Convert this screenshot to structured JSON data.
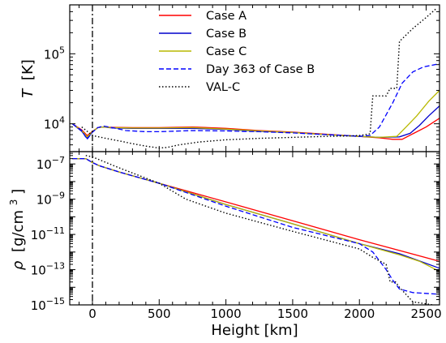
{
  "chart_data": [
    {
      "type": "line",
      "panel": "top",
      "ylabel_var": "T",
      "ylabel_unit": "[K]",
      "yscale": "log",
      "ylim": [
        4000,
        500000
      ],
      "xlim": [
        -170,
        2600
      ],
      "y_ticks": [
        {
          "value": 10000,
          "base": "10",
          "exp": "4"
        },
        {
          "value": 100000,
          "base": "10",
          "exp": "5"
        }
      ],
      "grid": false,
      "vertical_line_x": 0,
      "legend_position": "top-center",
      "series": [
        {
          "name": "Case A",
          "color": "#ff0000",
          "style": "solid",
          "x": [
            -150,
            -80,
            -40,
            0,
            40,
            80,
            150,
            300,
            500,
            750,
            1000,
            1250,
            1500,
            1750,
            2000,
            2150,
            2250,
            2320,
            2400,
            2500,
            2600
          ],
          "y": [
            10000,
            8200,
            6800,
            7800,
            8800,
            9000,
            8900,
            8800,
            8800,
            9000,
            8600,
            8000,
            7600,
            7100,
            6600,
            6300,
            6000,
            6000,
            7200,
            9000,
            12000
          ]
        },
        {
          "name": "Case B",
          "color": "#0000cc",
          "style": "solid",
          "x": [
            -150,
            -80,
            -40,
            0,
            40,
            80,
            150,
            300,
            500,
            750,
            1000,
            1250,
            1500,
            1750,
            2000,
            2150,
            2300,
            2380,
            2450,
            2520,
            2600
          ],
          "y": [
            10000,
            7800,
            6200,
            7600,
            8800,
            9000,
            8700,
            8600,
            8600,
            8600,
            8300,
            7800,
            7500,
            7000,
            6600,
            6400,
            6500,
            7300,
            9500,
            13000,
            18000
          ]
        },
        {
          "name": "Case C",
          "color": "#b8b800",
          "style": "solid",
          "x": [
            -150,
            -80,
            -40,
            0,
            40,
            80,
            150,
            300,
            500,
            750,
            1000,
            1250,
            1500,
            1750,
            2000,
            2150,
            2280,
            2350,
            2430,
            2520,
            2600
          ],
          "y": [
            10000,
            8000,
            6500,
            7700,
            8800,
            9000,
            8800,
            8700,
            8700,
            8800,
            8400,
            7900,
            7500,
            7000,
            6600,
            6400,
            6600,
            9000,
            13000,
            21000,
            30000
          ]
        },
        {
          "name": "Day 363 of Case B",
          "color": "#0000ff",
          "style": "dashed",
          "x": [
            -150,
            -80,
            -40,
            0,
            40,
            80,
            150,
            250,
            400,
            500,
            750,
            1000,
            1250,
            1500,
            1750,
            1900,
            2000,
            2080,
            2150,
            2250,
            2320,
            2400,
            2480,
            2600
          ],
          "y": [
            10000,
            8000,
            6000,
            7600,
            8800,
            9300,
            8800,
            8000,
            7700,
            7700,
            8000,
            7900,
            7700,
            7400,
            7000,
            6800,
            6600,
            6800,
            9000,
            20000,
            38000,
            55000,
            65000,
            72000
          ]
        },
        {
          "name": "VAL-C",
          "color": "#000000",
          "style": "dotted",
          "x": [
            -80,
            0,
            100,
            200,
            300,
            400,
            500,
            560,
            650,
            800,
            1000,
            1250,
            1500,
            1750,
            1900,
            2000,
            2080,
            2100,
            2200,
            2230,
            2280,
            2300,
            2400,
            2500,
            2580
          ],
          "y": [
            9000,
            6800,
            6200,
            5700,
            5200,
            4800,
            4500,
            4600,
            5000,
            5500,
            5900,
            6200,
            6400,
            6600,
            6700,
            6800,
            7200,
            25000,
            25000,
            32000,
            32000,
            150000,
            230000,
            330000,
            450000
          ]
        }
      ]
    },
    {
      "type": "line",
      "panel": "bottom",
      "ylabel_var": "ρ",
      "ylabel_unit_pre": "[g/cm",
      "ylabel_unit_sup": "3",
      "ylabel_unit_post": "]",
      "xlabel": "Height [km]",
      "yscale": "log",
      "ylim": [
        1e-15,
        5e-07
      ],
      "xlim": [
        -170,
        2600
      ],
      "x_ticks": [
        0,
        500,
        1000,
        1500,
        2000,
        2500
      ],
      "y_ticks": [
        {
          "value": 1e-07,
          "base": "10",
          "exp": "−7"
        },
        {
          "value": 1e-09,
          "base": "10",
          "exp": "−9"
        },
        {
          "value": 1e-11,
          "base": "10",
          "exp": "−11"
        },
        {
          "value": 1e-13,
          "base": "10",
          "exp": "−13"
        },
        {
          "value": 1e-15,
          "base": "10",
          "exp": "−15"
        }
      ],
      "grid": false,
      "vertical_line_x": 0,
      "series": [
        {
          "name": "Case A",
          "color": "#ff0000",
          "style": "solid",
          "x": [
            -150,
            -50,
            0,
            50,
            200,
            500,
            1000,
            1500,
            2000,
            2600
          ],
          "y": [
            2e-07,
            2e-07,
            1.2e-07,
            8e-08,
            3.5e-08,
            8e-09,
            7e-10,
            6e-11,
            5e-12,
            3e-13
          ]
        },
        {
          "name": "Case B",
          "color": "#0000cc",
          "style": "solid",
          "x": [
            -150,
            -50,
            0,
            50,
            200,
            500,
            1000,
            1500,
            2000,
            2300,
            2600
          ],
          "y": [
            2e-07,
            2e-07,
            1.2e-07,
            8e-08,
            3.5e-08,
            8e-09,
            5e-10,
            4e-11,
            3e-12,
            8e-13,
            1.2e-13
          ]
        },
        {
          "name": "Case C",
          "color": "#b8b800",
          "style": "solid",
          "x": [
            -150,
            -50,
            0,
            50,
            200,
            500,
            1000,
            1500,
            2000,
            2300,
            2450,
            2600
          ],
          "y": [
            2e-07,
            2e-07,
            1.2e-07,
            8e-08,
            3.5e-08,
            8e-09,
            5e-10,
            4e-11,
            3e-12,
            7e-13,
            3e-13,
            8e-14
          ]
        },
        {
          "name": "Day 363 of Case B",
          "color": "#0000ff",
          "style": "dashed",
          "x": [
            -150,
            -50,
            0,
            50,
            200,
            500,
            1000,
            1500,
            1800,
            2000,
            2100,
            2200,
            2250,
            2300,
            2400,
            2600
          ],
          "y": [
            2e-07,
            2e-07,
            1.2e-07,
            8e-08,
            3.5e-08,
            8e-09,
            4e-10,
            2.5e-11,
            7e-12,
            3e-12,
            1e-12,
            1e-13,
            2.5e-14,
            8e-15,
            5e-15,
            4e-15
          ]
        },
        {
          "name": "VAL-C",
          "color": "#000000",
          "style": "dotted",
          "x": [
            -50,
            0,
            200,
            500,
            700,
            1000,
            1500,
            2000,
            2100,
            2200,
            2230,
            2270,
            2300,
            2400,
            2550
          ],
          "y": [
            3e-07,
            2.5e-07,
            6e-08,
            8e-09,
            1e-09,
            1.6e-10,
            1.5e-11,
            1.5e-12,
            5e-13,
            2e-13,
            2e-14,
            2e-14,
            1e-14,
            1.5e-15,
            1e-15
          ]
        }
      ]
    }
  ]
}
